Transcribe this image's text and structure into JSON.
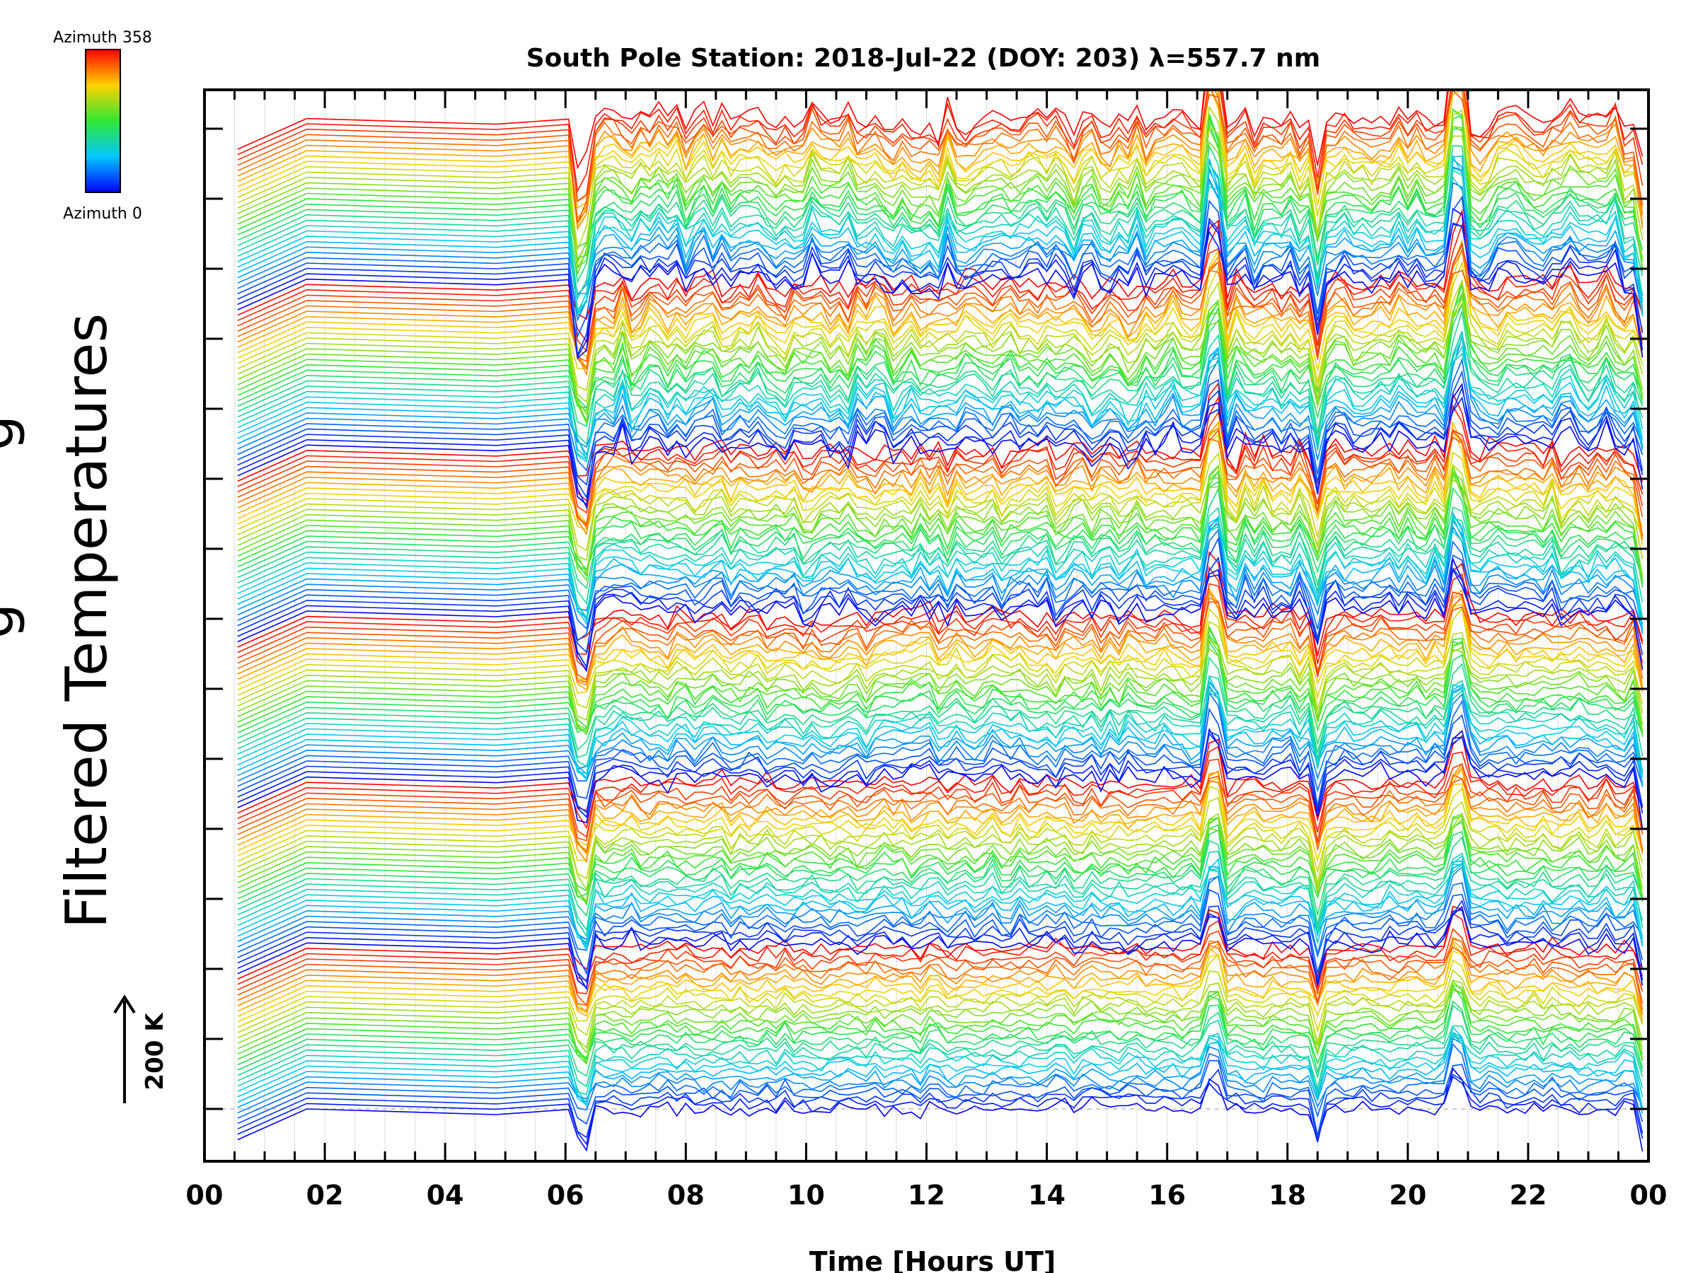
{
  "chart_data": {
    "type": "line",
    "title": "South Pole Station: 2018-Jul-22 (DOY: 203) λ=557.7 nm",
    "xlabel": "Time [Hours UT]",
    "ylabel": "Filtered Temperatures",
    "ylabel_clipped_glyphs": [
      "g",
      "g"
    ],
    "x_tick_labels": [
      "00",
      "02",
      "04",
      "06",
      "08",
      "10",
      "12",
      "14",
      "16",
      "18",
      "20",
      "22",
      "00"
    ],
    "xlim_hours": [
      0,
      24
    ],
    "grid": true,
    "scale_bar": {
      "label": "200 K",
      "kelvin": 200
    },
    "colorbar": {
      "top_label": "Azimuth 358",
      "bottom_label": "Azimuth 0",
      "colormap": "rainbow",
      "min": 0,
      "max": 358,
      "position": "top-left"
    },
    "series_description": "Stacked offset traces of filtered temperature vs. time, one per azimuth (0–358), colored by azimuth; trace data begins near 00:30 UT, gap between ~01:40 and ~04:50 UT.",
    "stack": {
      "groups": 6,
      "traces_per_group": 31,
      "time_start_hours": 0.55,
      "gap_hours": [
        1.7,
        4.85
      ],
      "sample_step_hours": 0.15
    },
    "events_hours": [
      6.3,
      16.75,
      18.5,
      20.85,
      24.0
    ]
  },
  "colors": {
    "axis": "#000000",
    "grid": "#dddddd",
    "baseline": "#bbbbbb"
  }
}
